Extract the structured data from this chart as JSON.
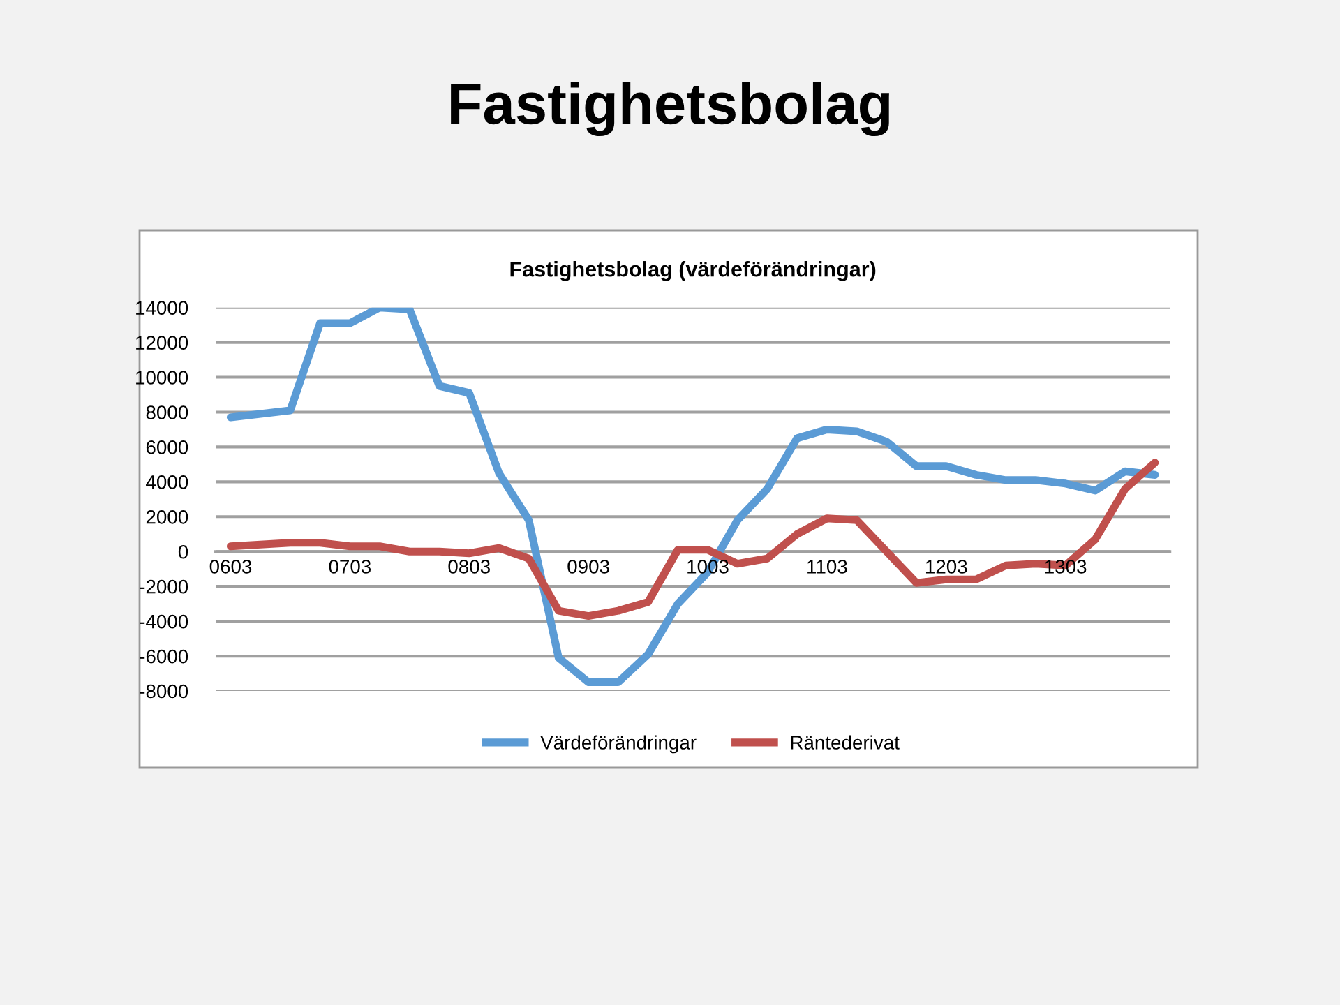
{
  "chart_data": {
    "type": "line",
    "title": "Fastighetsbolag",
    "subtitle": "Fastighetsbolag (värdeförändringar)",
    "categories": [
      "0603",
      null,
      null,
      null,
      "0703",
      null,
      null,
      null,
      "0803",
      null,
      null,
      null,
      "0903",
      null,
      null,
      null,
      "1003",
      null,
      null,
      null,
      "1103",
      null,
      null,
      null,
      "1203",
      null,
      null,
      null,
      "1303",
      null,
      null,
      null
    ],
    "series": [
      {
        "name": "Värdeförändringar",
        "color": "#5b9bd5",
        "values": [
          7700,
          7900,
          8100,
          13100,
          13100,
          14000,
          13900,
          9500,
          9100,
          4500,
          1800,
          -6100,
          -7500,
          -7500,
          -5900,
          -3000,
          -1200,
          1800,
          3600,
          6500,
          7000,
          6900,
          6300,
          4900,
          4900,
          4400,
          4100,
          4100,
          3900,
          3500,
          4600,
          4400
        ]
      },
      {
        "name": "Räntederivat",
        "color": "#c0504d",
        "values": [
          300,
          400,
          500,
          500,
          300,
          300,
          0,
          0,
          -100,
          200,
          -400,
          -3400,
          -3700,
          -3400,
          -2900,
          100,
          100,
          -700,
          -400,
          1000,
          1900,
          1800,
          0,
          -1800,
          -1600,
          -1600,
          -800,
          -700,
          -800,
          700,
          3600,
          5100
        ]
      }
    ],
    "ylim": [
      -8000,
      14000
    ],
    "yticks": [
      -8000,
      -6000,
      -4000,
      -2000,
      0,
      2000,
      4000,
      6000,
      8000,
      10000,
      12000,
      14000
    ],
    "grid": "y",
    "legend": "bottom",
    "marker": "none",
    "line_style": "solid"
  }
}
